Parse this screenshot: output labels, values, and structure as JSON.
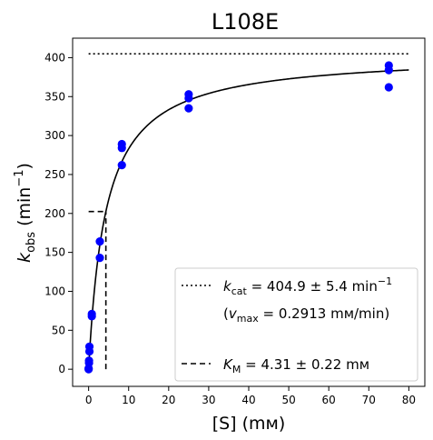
{
  "chart_data": {
    "type": "scatter",
    "title": "L108E",
    "xlabel": "[S] (mм)",
    "ylabel": {
      "main": "k",
      "sub": "obs",
      "units_pre": " (min",
      "units_sup": "−1",
      "units_post": ")"
    },
    "xlim": [
      -4,
      84
    ],
    "ylim": [
      -22,
      425
    ],
    "xticks": [
      0,
      10,
      20,
      30,
      40,
      50,
      60,
      70,
      80
    ],
    "yticks": [
      0,
      50,
      100,
      150,
      200,
      250,
      300,
      350,
      400
    ],
    "grid": false,
    "legend_position": "lower-right",
    "series": [
      {
        "kind": "points",
        "color": "#0000ff",
        "points": [
          {
            "x": 0,
            "y": 0
          },
          {
            "x": 0,
            "y": 1
          },
          {
            "x": 0.1,
            "y": 8
          },
          {
            "x": 0.1,
            "y": 11
          },
          {
            "x": 0.2,
            "y": 23
          },
          {
            "x": 0.2,
            "y": 29
          },
          {
            "x": 0.8,
            "y": 68
          },
          {
            "x": 0.8,
            "y": 71
          },
          {
            "x": 2.8,
            "y": 143
          },
          {
            "x": 2.8,
            "y": 164
          },
          {
            "x": 8.3,
            "y": 262
          },
          {
            "x": 8.3,
            "y": 284
          },
          {
            "x": 8.3,
            "y": 289
          },
          {
            "x": 25,
            "y": 335
          },
          {
            "x": 25,
            "y": 348
          },
          {
            "x": 25,
            "y": 353
          },
          {
            "x": 75,
            "y": 362
          },
          {
            "x": 75,
            "y": 384
          },
          {
            "x": 75,
            "y": 390
          }
        ]
      },
      {
        "kind": "fit-curve",
        "color": "#000000",
        "model": "michaelis-menten",
        "kcat": 404.9,
        "km": 4.31,
        "x_range": [
          0,
          80
        ]
      }
    ],
    "reference_lines": [
      {
        "kind": "kcat-line",
        "style": "dotted",
        "x_from": 0,
        "x_to": 80,
        "y": 404.9
      },
      {
        "kind": "km-horizontal",
        "style": "dashed",
        "x_from": 0,
        "x_to": 4.31,
        "y": 202.45
      },
      {
        "kind": "km-vertical",
        "style": "dashed",
        "x": 4.31,
        "y_from": 0,
        "y_to": 202.45
      }
    ],
    "legend": {
      "kcat": {
        "sym": "k",
        "sub": "cat",
        "text": " = 404.9 ± 5.4 min",
        "sup": "−1"
      },
      "vmax": {
        "open": "(",
        "sym": "v",
        "sub": "max",
        "text": " = 0.2913 mм/min)"
      },
      "km": {
        "sym": "K",
        "sub": "M",
        "text": " = 4.31 ± 0.22 mм"
      }
    }
  }
}
